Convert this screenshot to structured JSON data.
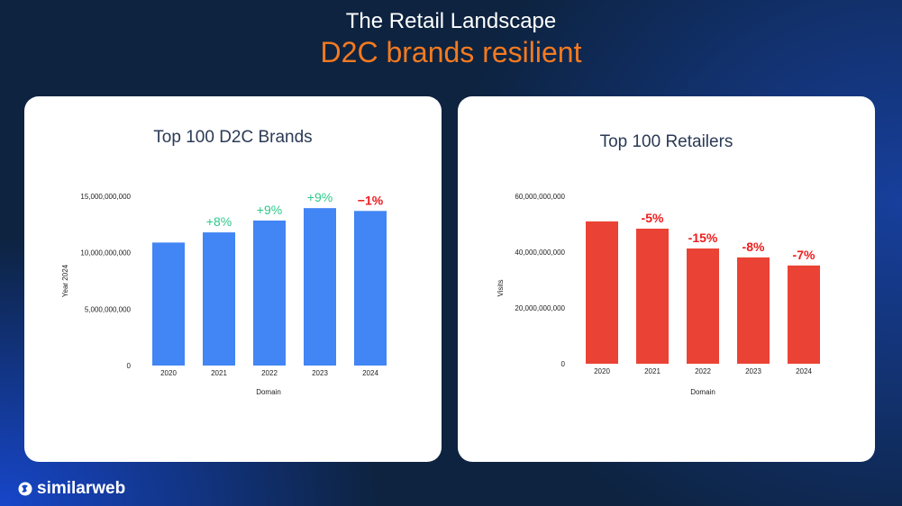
{
  "header": {
    "title": "The Retail Landscape",
    "subtitle": "D2C brands resilient"
  },
  "brand": {
    "name": "similarweb"
  },
  "colors": {
    "positive": "#2ec98a",
    "negative": "#ee1c1c",
    "blue_bar": "#4285f4",
    "red_bar": "#ea4335",
    "accent": "#f47a20"
  },
  "chart_data": [
    {
      "type": "bar",
      "title": "Top 100 D2C Brands",
      "xlabel": "Domain",
      "ylabel": "Year 2024",
      "categories": [
        "2020",
        "2021",
        "2022",
        "2023",
        "2024"
      ],
      "values": [
        10900000000,
        11800000000,
        12850000000,
        13950000000,
        13700000000
      ],
      "ylim": [
        0,
        15000000000
      ],
      "yticks": [
        {
          "v": 0,
          "label": "0"
        },
        {
          "v": 5000000000,
          "label": "5,000,000,000"
        },
        {
          "v": 10000000000,
          "label": "10,000,000,000"
        },
        {
          "v": 15000000000,
          "label": "15,000,000,000"
        }
      ],
      "annotations": [
        "",
        "+8%",
        "+9%",
        "+9%",
        "−1%"
      ],
      "annotation_signs": [
        "",
        "pos",
        "pos",
        "pos",
        "neg"
      ],
      "bar_color": "#4285f4",
      "grid": false
    },
    {
      "type": "bar",
      "title": "Top 100 Retailers",
      "xlabel": "Domain",
      "ylabel": "Visits",
      "categories": [
        "2020",
        "2021",
        "2022",
        "2023",
        "2024"
      ],
      "values": [
        51000000000,
        48400000000,
        41300000000,
        38100000000,
        35200000000
      ],
      "ylim": [
        0,
        60000000000
      ],
      "yticks": [
        {
          "v": 0,
          "label": "0"
        },
        {
          "v": 20000000000,
          "label": "20,000,000,000"
        },
        {
          "v": 40000000000,
          "label": "40,000,000,000"
        },
        {
          "v": 60000000000,
          "label": "60,000,000,000"
        }
      ],
      "annotations": [
        "",
        "-5%",
        "-15%",
        "-8%",
        "-7%"
      ],
      "annotation_signs": [
        "",
        "neg",
        "neg",
        "neg",
        "neg"
      ],
      "bar_color": "#ea4335",
      "grid": false
    }
  ]
}
